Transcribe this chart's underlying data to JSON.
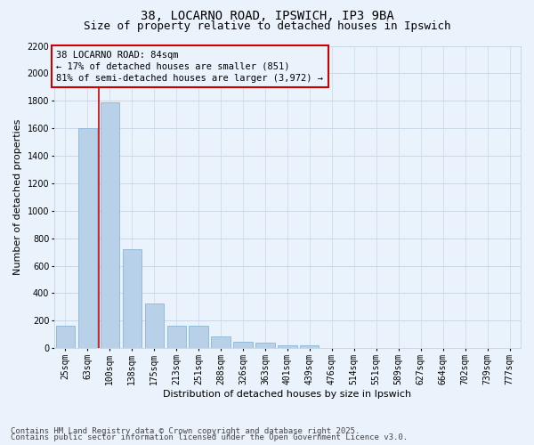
{
  "title_line1": "38, LOCARNO ROAD, IPSWICH, IP3 9BA",
  "title_line2": "Size of property relative to detached houses in Ipswich",
  "xlabel": "Distribution of detached houses by size in Ipswich",
  "ylabel": "Number of detached properties",
  "categories": [
    "25sqm",
    "63sqm",
    "100sqm",
    "138sqm",
    "175sqm",
    "213sqm",
    "251sqm",
    "288sqm",
    "326sqm",
    "363sqm",
    "401sqm",
    "439sqm",
    "476sqm",
    "514sqm",
    "551sqm",
    "589sqm",
    "627sqm",
    "664sqm",
    "702sqm",
    "739sqm",
    "777sqm"
  ],
  "values": [
    160,
    1600,
    1790,
    720,
    325,
    160,
    160,
    85,
    45,
    40,
    22,
    18,
    0,
    0,
    0,
    0,
    0,
    0,
    0,
    0,
    0
  ],
  "bar_color": "#b8d0e8",
  "bar_edge_color": "#7aafd4",
  "grid_color": "#c8d8e8",
  "background_color": "#eaf2fb",
  "annotation_box_text": "38 LOCARNO ROAD: 84sqm\n← 17% of detached houses are smaller (851)\n81% of semi-detached houses are larger (3,972) →",
  "annotation_box_color": "#cc0000",
  "vline_color": "#cc0000",
  "vline_x_index": 1.5,
  "ylim": [
    0,
    2200
  ],
  "yticks": [
    0,
    200,
    400,
    600,
    800,
    1000,
    1200,
    1400,
    1600,
    1800,
    2000,
    2200
  ],
  "footer_line1": "Contains HM Land Registry data © Crown copyright and database right 2025.",
  "footer_line2": "Contains public sector information licensed under the Open Government Licence v3.0.",
  "title_fontsize": 10,
  "subtitle_fontsize": 9,
  "axis_label_fontsize": 8,
  "tick_fontsize": 7,
  "annotation_fontsize": 7.5,
  "footer_fontsize": 6.5
}
